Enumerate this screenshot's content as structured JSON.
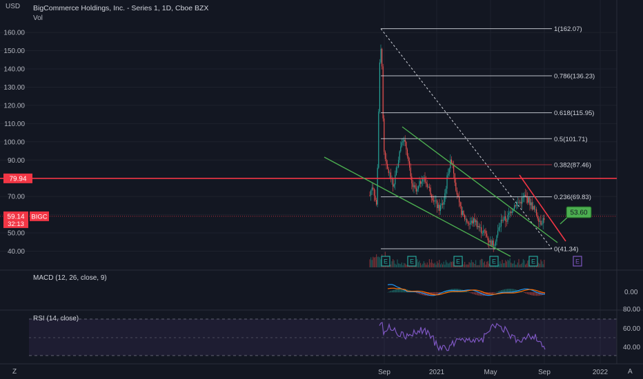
{
  "currency": "USD",
  "title": "BigCommerce Holdings, Inc. - Series 1, 1D, Cboe BZX",
  "vol_label": "Vol",
  "macd_label": "MACD (12, 26, close, 9)",
  "rsi_label": "RSI (14, close)",
  "corner_left": "Z",
  "corner_right": "A",
  "price_tag": {
    "value": "59.14",
    "countdown": "32:13",
    "symbol": "BIGC",
    "color": "#f23645"
  },
  "hline_tag": {
    "value": "79.94",
    "color": "#f23645"
  },
  "target_callout": {
    "value": "53.60",
    "color": "#26a69a"
  },
  "earnings_marker": "E",
  "colors": {
    "background": "#131722",
    "fib_line": "#d1d4dc",
    "fib_red": "#f23645",
    "channel": "#4caf50",
    "rsi": "#7e57c2",
    "macd": "#2196f3",
    "signal": "#ff6d00"
  },
  "chart_data": {
    "type": "candlestick",
    "price_axis": {
      "ticks": [
        40,
        50,
        60,
        70,
        80,
        90,
        100,
        110,
        120,
        130,
        140,
        150,
        160
      ],
      "labels": [
        "40.00",
        "50.00",
        "60.00",
        "70.00",
        "80.00",
        "90.00",
        "100.00",
        "110.00",
        "120.00",
        "130.00",
        "140.00",
        "150.00",
        "160.00"
      ]
    },
    "time_axis": [
      "Sep",
      "2021",
      "May",
      "Sep",
      "2022"
    ],
    "macd_axis": [
      "0.00"
    ],
    "rsi_axis": [
      "80.00",
      "60.00",
      "40.00"
    ],
    "fibonacci": [
      {
        "label": "1(162.07)",
        "price": 162.07
      },
      {
        "label": "0.786(136.23)",
        "price": 136.23
      },
      {
        "label": "0.618(115.95)",
        "price": 115.95
      },
      {
        "label": "0.5(101.71)",
        "price": 101.71
      },
      {
        "label": "0.382(87.46)",
        "price": 87.46,
        "highlight": true
      },
      {
        "label": "0.236(69.83)",
        "price": 69.83
      },
      {
        "label": "0(41.34)",
        "price": 41.34
      }
    ],
    "horizontal_line": 79.94,
    "last_price": 59.14,
    "target": 53.6
  }
}
